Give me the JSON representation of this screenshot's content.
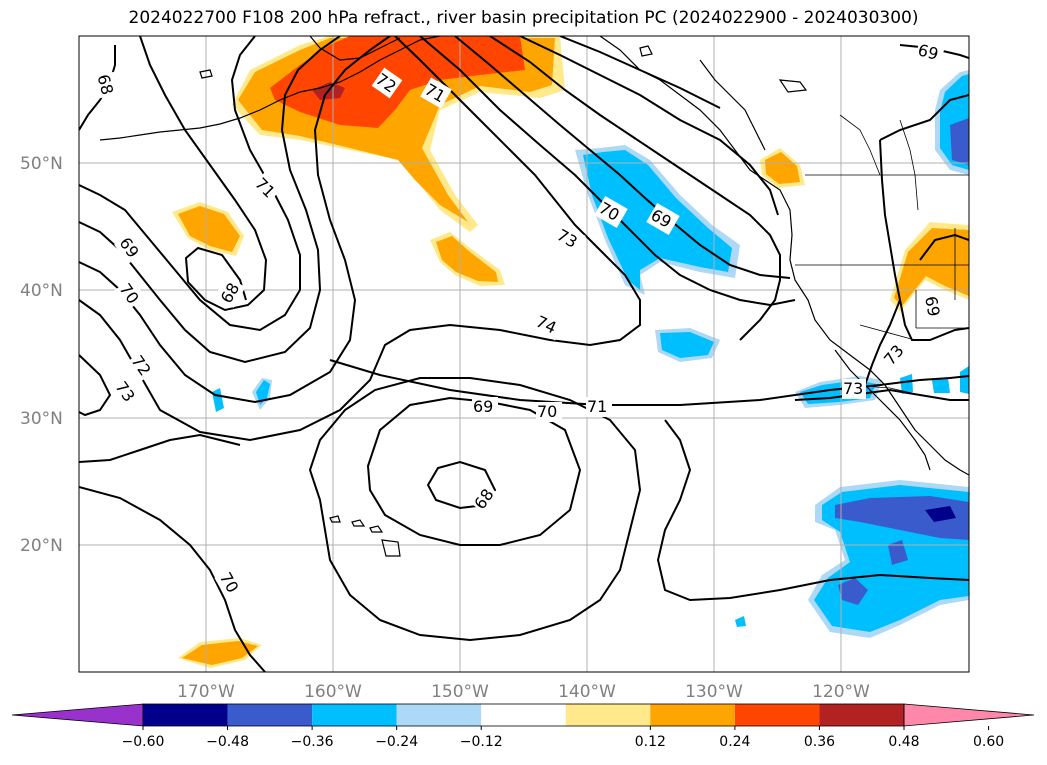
{
  "title": "2024022700 F108 200 hPa refract., river basin precipitation PC (2024022900 - 2024030300)",
  "lat_labels": [
    "50°N",
    "40°N",
    "30°N",
    "20°N"
  ],
  "lon_labels": [
    "170°W",
    "160°W",
    "150°W",
    "140°W",
    "130°W",
    "120°W"
  ],
  "contour_labels": [
    "68",
    "71",
    "71",
    "72",
    "73",
    "69",
    "70",
    "68",
    "70",
    "69",
    "73",
    "74",
    "69",
    "70",
    "71",
    "68",
    "70",
    "72",
    "73",
    "73",
    "69"
  ],
  "colorbar": {
    "ticks": [
      "−0.60",
      "−0.48",
      "−0.36",
      "−0.24",
      "−0.12",
      "0.12",
      "0.24",
      "0.36",
      "0.48",
      "0.60"
    ],
    "colors": [
      "#9932cc",
      "#00008b",
      "#3a5bcc",
      "#00bfff",
      "#add8f6",
      "#ffffff",
      "#ffe98a",
      "#ffa500",
      "#ff4500",
      "#b22222",
      "#ff88aa"
    ]
  },
  "shading_colors": {
    "light_orange": "#ffe98a",
    "orange": "#ffa500",
    "red_orange": "#ff4500",
    "light_blue": "#add8f6",
    "blue": "#00bfff",
    "mid_blue": "#3a5bcc",
    "navy": "#00008b"
  }
}
